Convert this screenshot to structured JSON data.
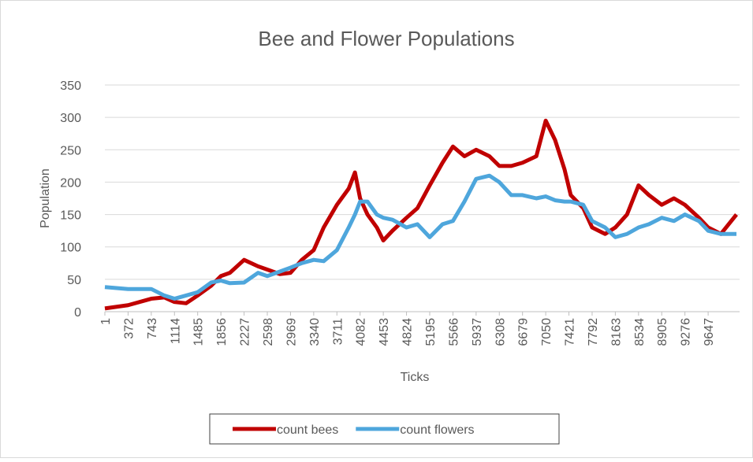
{
  "chart_data": {
    "type": "line",
    "title": "Bee and Flower Populations",
    "xlabel": "Ticks",
    "ylabel": "Population",
    "x": [
      1,
      372,
      743,
      950,
      1114,
      1300,
      1485,
      1700,
      1856,
      2000,
      2227,
      2450,
      2598,
      2800,
      2969,
      3150,
      3340,
      3500,
      3711,
      3900,
      4000,
      4082,
      4200,
      4350,
      4453,
      4600,
      4824,
      5000,
      5195,
      5400,
      5566,
      5750,
      5937,
      6150,
      6308,
      6500,
      6679,
      6900,
      7050,
      7200,
      7350,
      7450,
      7650,
      7792,
      8000,
      8163,
      8350,
      8534,
      8700,
      8905,
      9100,
      9276,
      9500,
      9647,
      9850,
      10100
    ],
    "series": [
      {
        "name": "count bees",
        "color": "#c00000",
        "values": [
          5,
          10,
          20,
          22,
          15,
          13,
          25,
          40,
          55,
          60,
          80,
          70,
          65,
          58,
          60,
          80,
          95,
          130,
          165,
          190,
          215,
          175,
          150,
          130,
          110,
          125,
          145,
          160,
          195,
          230,
          255,
          240,
          250,
          240,
          225,
          225,
          230,
          240,
          295,
          265,
          220,
          180,
          160,
          130,
          120,
          130,
          150,
          195,
          180,
          165,
          175,
          165,
          145,
          130,
          120,
          150
        ]
      },
      {
        "name": "count flowers",
        "color": "#4ea6dc",
        "values": [
          38,
          35,
          35,
          25,
          20,
          25,
          30,
          45,
          48,
          44,
          45,
          60,
          55,
          62,
          68,
          75,
          80,
          78,
          95,
          130,
          150,
          170,
          170,
          150,
          145,
          142,
          130,
          135,
          115,
          135,
          140,
          170,
          205,
          210,
          200,
          180,
          180,
          175,
          178,
          172,
          170,
          170,
          165,
          140,
          130,
          115,
          120,
          130,
          135,
          145,
          140,
          150,
          140,
          125,
          120,
          120
        ]
      }
    ],
    "xlim": [
      1,
      10150
    ],
    "xticks": [
      1,
      372,
      743,
      1114,
      1485,
      1856,
      2227,
      2598,
      2969,
      3340,
      3711,
      4082,
      4453,
      4824,
      5195,
      5566,
      5937,
      6308,
      6679,
      7050,
      7421,
      7792,
      8163,
      8534,
      8905,
      9276,
      9647
    ],
    "ylim": [
      0,
      350
    ],
    "yticks": [
      0,
      50,
      100,
      150,
      200,
      250,
      300,
      350
    ],
    "grid": true,
    "legend": "bottom"
  }
}
